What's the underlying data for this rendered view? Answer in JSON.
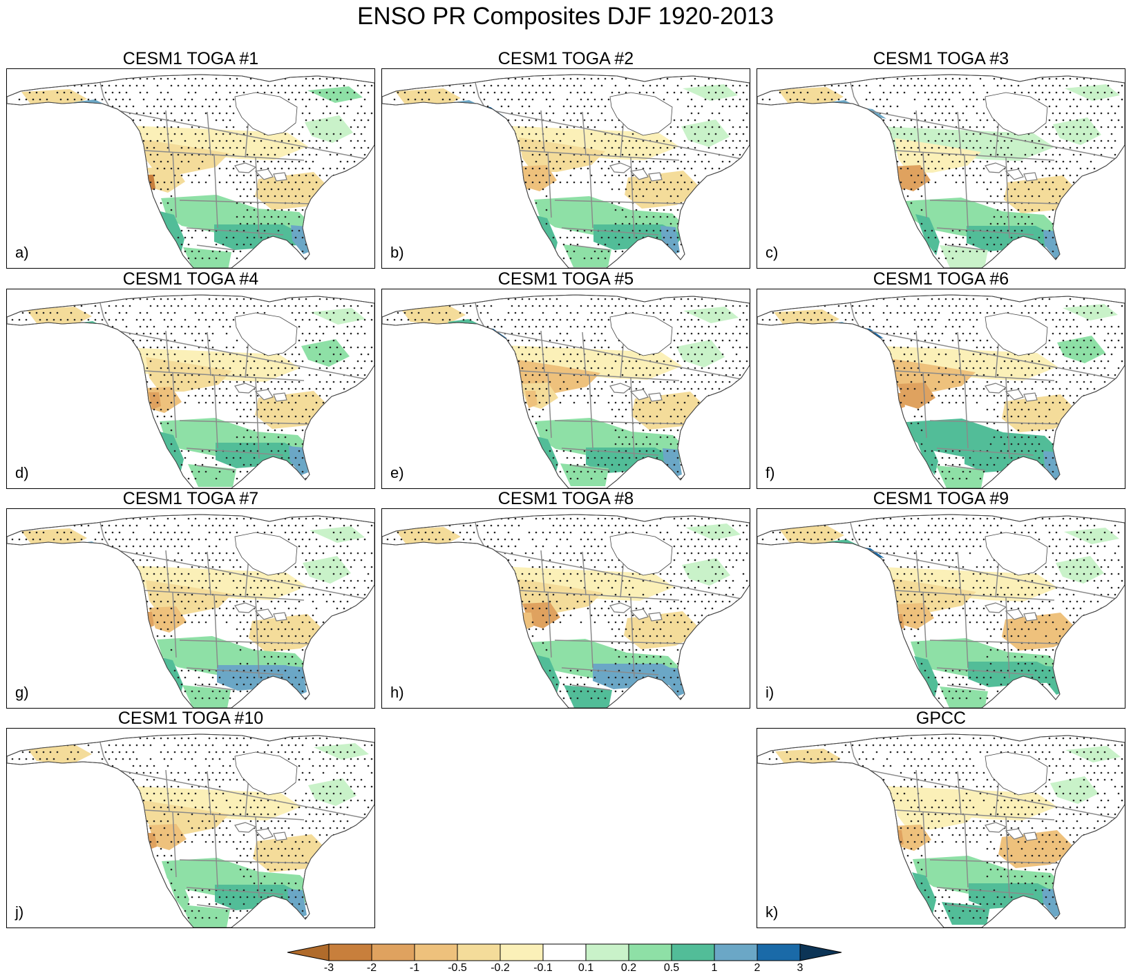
{
  "title": "ENSO PR Composites DJF 1920-2013",
  "panels": [
    {
      "title": "CESM1 TOGA #1",
      "label": "a)"
    },
    {
      "title": "CESM1 TOGA #2",
      "label": "b)"
    },
    {
      "title": "CESM1 TOGA #3",
      "label": "c)"
    },
    {
      "title": "CESM1 TOGA #4",
      "label": "d)"
    },
    {
      "title": "CESM1 TOGA #5",
      "label": "e)"
    },
    {
      "title": "CESM1 TOGA #6",
      "label": "f)"
    },
    {
      "title": "CESM1 TOGA #7",
      "label": "g)"
    },
    {
      "title": "CESM1 TOGA #8",
      "label": "h)"
    },
    {
      "title": "CESM1 TOGA #9",
      "label": "i)"
    },
    {
      "title": "CESM1 TOGA #10",
      "label": "j)"
    },
    {
      "title": "GPCC",
      "label": "k)"
    }
  ],
  "colorbar": {
    "labels": [
      "-3",
      "-2",
      "-1",
      "-0.5",
      "-0.2",
      "-0.1",
      "0.1",
      "0.2",
      "0.5",
      "1",
      "2",
      "3"
    ],
    "colors": [
      "#c87f3c",
      "#dfa25f",
      "#eec17c",
      "#f4dc9a",
      "#fbf0b8",
      "#ffffff",
      "#c9f2c9",
      "#8ee0a6",
      "#52bd98",
      "#6ba7c6",
      "#1a6aa8"
    ],
    "low_extend_color": "#b06b2b",
    "high_extend_color": "#0c3456"
  },
  "map_colors": {
    "land_background": "#ffffff",
    "stipple": "#222222",
    "borders": "#8a8a8a",
    "coast": "#444444"
  }
}
